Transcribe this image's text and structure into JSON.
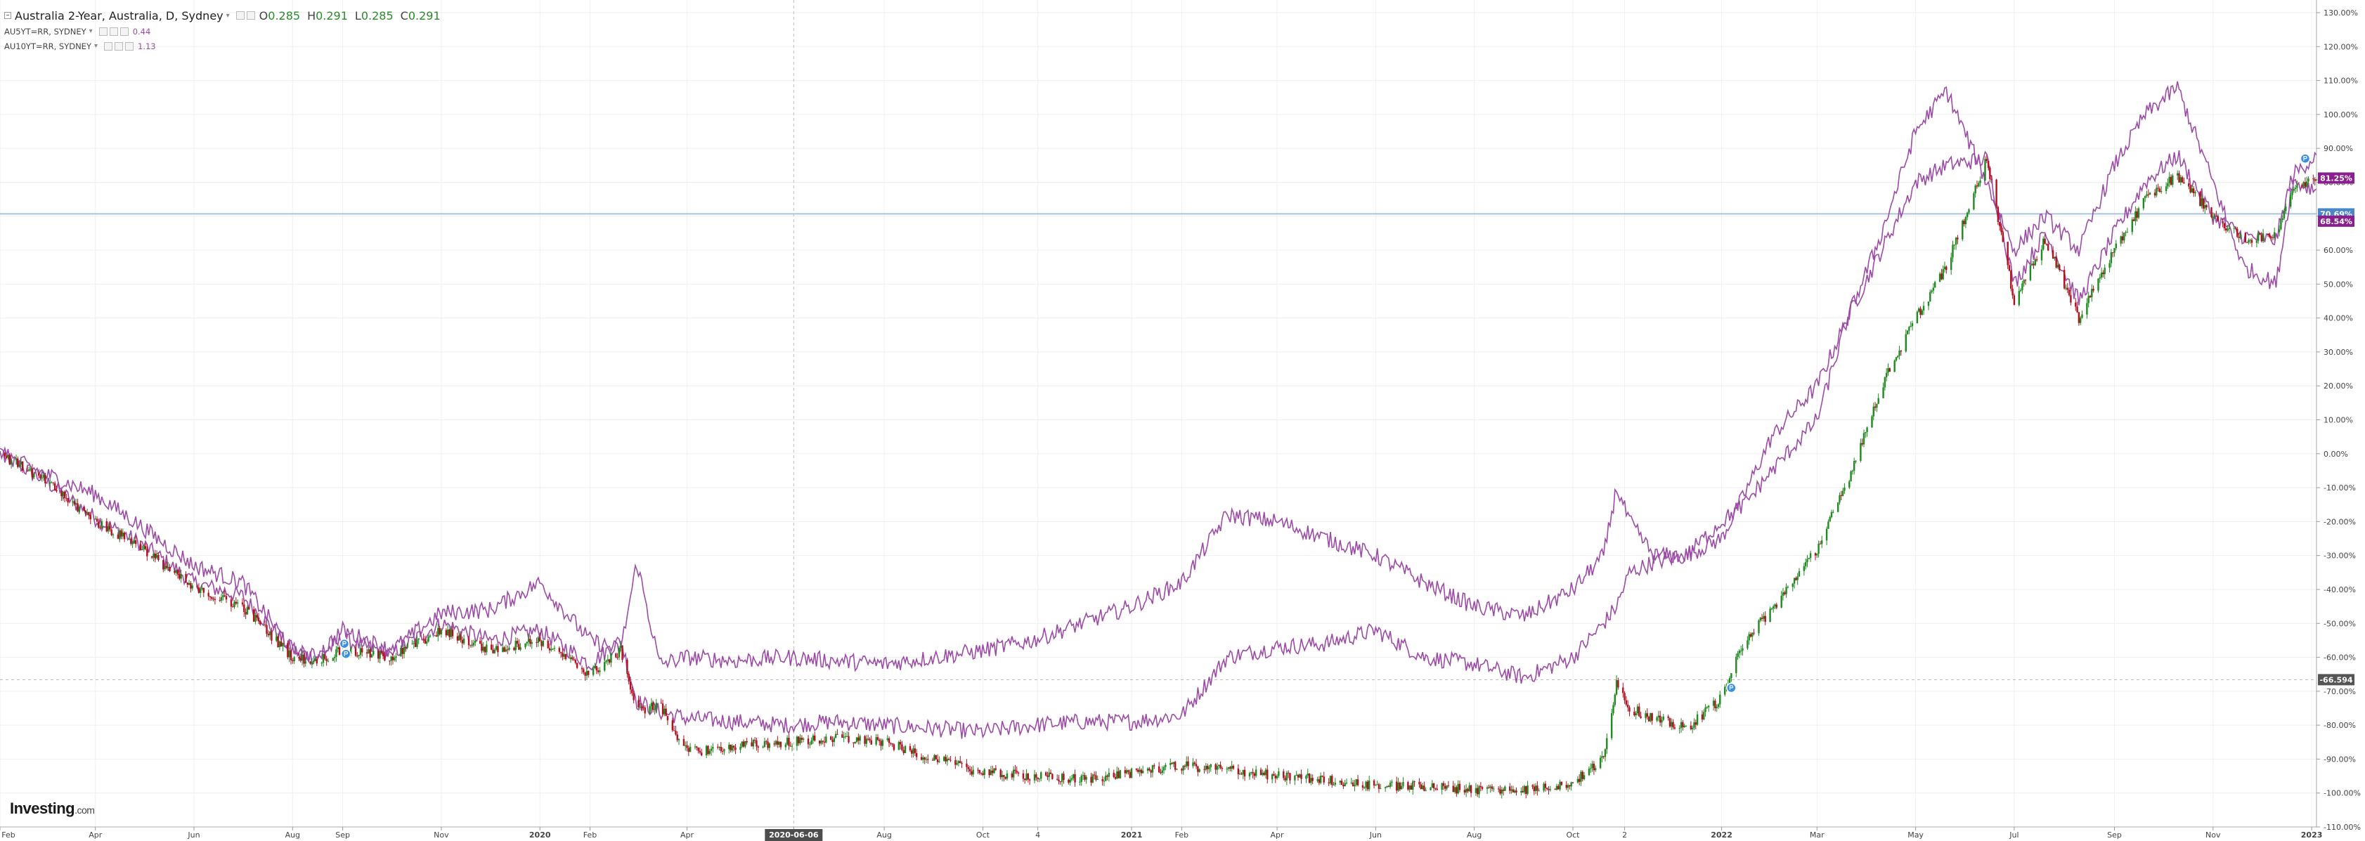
{
  "legend": {
    "main_title": "Australia 2-Year, Australia, D, Sydney",
    "ohlc": [
      {
        "label": "O",
        "value": "0.285"
      },
      {
        "label": "H",
        "value": "0.291"
      },
      {
        "label": "L",
        "value": "0.285"
      },
      {
        "label": "C",
        "value": "0.291"
      }
    ],
    "series": [
      {
        "label": "AU5YT=RR, SYDNEY",
        "value": "0.44"
      },
      {
        "label": "AU10YT=RR, SYDNEY",
        "value": "1.13"
      }
    ]
  },
  "logo": {
    "main": "Investing",
    "suffix": ".com"
  },
  "colors": {
    "up": "#1f8a1f",
    "down": "#b01020",
    "compare": "#9c4ba6",
    "hline": "#aac4dc"
  },
  "chart_data": {
    "type": "line",
    "title": "Australia 2-Year, Australia, D, Sydney",
    "y_scale": "percent change",
    "ylim": [
      -110,
      130
    ],
    "y_ticks": [
      "130.00%",
      "120.00%",
      "110.00%",
      "100.00%",
      "90.00%",
      "80.00%",
      "70.00%",
      "60.00%",
      "50.00%",
      "40.00%",
      "30.00%",
      "20.00%",
      "10.00%",
      "0.00%",
      "-10.00%",
      "-20.00%",
      "-30.00%",
      "-40.00%",
      "-50.00%",
      "-60.00%",
      "-70.00%",
      "-80.00%",
      "-90.00%",
      "-100.00%",
      "-110.00%"
    ],
    "x_ticks": [
      "Feb",
      "Apr",
      "Jun",
      "Aug",
      "Sep",
      "Nov",
      "2020",
      "Feb",
      "Apr",
      "2020-06-06",
      "Aug",
      "Oct",
      "4",
      "2021",
      "Feb",
      "Apr",
      "Jun",
      "Aug",
      "Oct",
      "2",
      "2022",
      "Mar",
      "May",
      "Jul",
      "Sep",
      "Nov",
      "2023"
    ],
    "x_range": [
      "2019-02-01",
      "2023-01-04"
    ],
    "grid": true,
    "legend_position": "top-left",
    "crosshair_x_label": "2020-06-06",
    "crosshair_y_label": "-66.594",
    "price_labels": [
      {
        "text": "81.25%",
        "value": 81.25,
        "color": "#8b1f8f"
      },
      {
        "text": "70.69%",
        "value": 70.69,
        "color": "#4a86c8"
      },
      {
        "text": "68.54%",
        "value": 68.54,
        "color": "#8b1f8f"
      },
      {
        "text": "-66.594",
        "value": -66.594,
        "color": "#555555"
      }
    ],
    "horizontal_line_value": 70.69,
    "event_markers": [
      {
        "date": "2019-09-02",
        "value": -56
      },
      {
        "date": "2019-09-03",
        "value": -59
      },
      {
        "date": "2022-01-07",
        "value": -69
      },
      {
        "date": "2022-12-28",
        "value": 87
      }
    ],
    "series": [
      {
        "name": "Australia 2-Year",
        "style": "candles",
        "dates": [
          "2019-02-01",
          "2019-03-01",
          "2019-04-01",
          "2019-05-01",
          "2019-06-01",
          "2019-07-01",
          "2019-08-01",
          "2019-08-15",
          "2019-09-01",
          "2019-10-01",
          "2019-11-01",
          "2019-12-01",
          "2020-01-01",
          "2020-02-01",
          "2020-02-20",
          "2020-03-01",
          "2020-03-15",
          "2020-04-01",
          "2020-05-01",
          "2020-06-01",
          "2020-07-01",
          "2020-08-01",
          "2020-09-01",
          "2020-10-01",
          "2020-11-01",
          "2020-12-01",
          "2021-01-01",
          "2021-02-01",
          "2021-03-01",
          "2021-04-01",
          "2021-05-01",
          "2021-06-01",
          "2021-07-01",
          "2021-08-01",
          "2021-09-01",
          "2021-10-01",
          "2021-10-20",
          "2021-10-28",
          "2021-11-05",
          "2021-11-20",
          "2021-12-10",
          "2022-01-01",
          "2022-01-15",
          "2022-02-01",
          "2022-03-01",
          "2022-03-20",
          "2022-04-10",
          "2022-05-01",
          "2022-05-20",
          "2022-06-14",
          "2022-07-01",
          "2022-07-20",
          "2022-08-10",
          "2022-09-01",
          "2022-09-20",
          "2022-10-10",
          "2022-11-01",
          "2022-11-20",
          "2022-12-10",
          "2022-12-20",
          "2023-01-04"
        ],
        "values": [
          0,
          -8,
          -20,
          -28,
          -40,
          -45,
          -60,
          -61,
          -58,
          -60,
          -52,
          -58,
          -55,
          -65,
          -58,
          -76,
          -74,
          -88,
          -86,
          -85,
          -84,
          -85,
          -90,
          -94,
          -95,
          -96,
          -94,
          -92,
          -93,
          -95,
          -96,
          -98,
          -98,
          -99,
          -99,
          -97,
          -90,
          -67,
          -75,
          -78,
          -81,
          -72,
          -55,
          -46,
          -28,
          -8,
          20,
          40,
          55,
          87,
          45,
          63,
          40,
          60,
          75,
          82,
          70,
          63,
          65,
          78,
          81
        ]
      },
      {
        "name": "AU5YT=RR",
        "style": "line",
        "dates": [
          "2019-02-01",
          "2019-03-01",
          "2019-04-01",
          "2019-05-01",
          "2019-06-01",
          "2019-07-01",
          "2019-08-01",
          "2019-08-15",
          "2019-09-01",
          "2019-10-01",
          "2019-11-01",
          "2019-12-01",
          "2020-01-01",
          "2020-02-01",
          "2020-02-20",
          "2020-03-01",
          "2020-03-15",
          "2020-04-01",
          "2020-05-01",
          "2020-06-01",
          "2020-07-01",
          "2020-08-01",
          "2020-09-01",
          "2020-10-01",
          "2020-11-01",
          "2020-12-01",
          "2021-01-01",
          "2021-02-01",
          "2021-03-01",
          "2021-04-01",
          "2021-05-01",
          "2021-06-01",
          "2021-07-01",
          "2021-08-01",
          "2021-09-01",
          "2021-10-01",
          "2021-10-20",
          "2021-10-28",
          "2021-11-05",
          "2021-11-20",
          "2021-12-10",
          "2022-01-01",
          "2022-01-15",
          "2022-02-01",
          "2022-03-01",
          "2022-03-20",
          "2022-04-10",
          "2022-05-01",
          "2022-05-20",
          "2022-06-14",
          "2022-07-01",
          "2022-07-20",
          "2022-08-10",
          "2022-09-01",
          "2022-09-20",
          "2022-10-10",
          "2022-11-01",
          "2022-11-20",
          "2022-12-10",
          "2022-12-20",
          "2023-01-04"
        ],
        "values": [
          0,
          -8,
          -19,
          -27,
          -38,
          -42,
          -58,
          -60,
          -55,
          -59,
          -50,
          -55,
          -52,
          -62,
          -55,
          -73,
          -76,
          -78,
          -79,
          -80,
          -79,
          -80,
          -81,
          -82,
          -80,
          -79,
          -79,
          -77,
          -60,
          -57,
          -56,
          -52,
          -60,
          -62,
          -66,
          -60,
          -50,
          -45,
          -35,
          -32,
          -30,
          -25,
          -12,
          5,
          20,
          40,
          60,
          80,
          85,
          87,
          50,
          65,
          45,
          65,
          80,
          88,
          70,
          64,
          63,
          82,
          88
        ]
      },
      {
        "name": "AU10YT=RR",
        "style": "line",
        "dates": [
          "2019-02-01",
          "2019-03-01",
          "2019-04-01",
          "2019-05-01",
          "2019-06-01",
          "2019-07-01",
          "2019-08-01",
          "2019-08-15",
          "2019-09-01",
          "2019-10-01",
          "2019-11-01",
          "2019-12-01",
          "2020-01-01",
          "2020-02-01",
          "2020-02-20",
          "2020-03-01",
          "2020-03-15",
          "2020-04-01",
          "2020-05-01",
          "2020-06-01",
          "2020-07-01",
          "2020-08-01",
          "2020-09-01",
          "2020-10-01",
          "2020-11-01",
          "2020-12-01",
          "2021-01-01",
          "2021-02-01",
          "2021-03-01",
          "2021-04-01",
          "2021-05-01",
          "2021-06-01",
          "2021-07-01",
          "2021-08-01",
          "2021-09-01",
          "2021-10-01",
          "2021-10-20",
          "2021-10-28",
          "2021-11-05",
          "2021-11-20",
          "2021-12-10",
          "2022-01-01",
          "2022-01-15",
          "2022-02-01",
          "2022-03-01",
          "2022-03-20",
          "2022-04-10",
          "2022-05-01",
          "2022-05-20",
          "2022-06-14",
          "2022-07-01",
          "2022-07-20",
          "2022-08-10",
          "2022-09-01",
          "2022-09-20",
          "2022-10-10",
          "2022-11-01",
          "2022-11-20",
          "2022-12-10",
          "2022-12-20",
          "2023-01-04"
        ],
        "values": [
          0,
          -6,
          -12,
          -22,
          -33,
          -38,
          -58,
          -60,
          -52,
          -58,
          -47,
          -46,
          -38,
          -55,
          -58,
          -32,
          -62,
          -60,
          -61,
          -60,
          -61,
          -62,
          -60,
          -58,
          -55,
          -50,
          -45,
          -38,
          -18,
          -20,
          -25,
          -30,
          -38,
          -45,
          -48,
          -40,
          -30,
          -10,
          -20,
          -30,
          -30,
          -20,
          -15,
          -5,
          10,
          40,
          65,
          95,
          107,
          80,
          60,
          70,
          60,
          85,
          100,
          108,
          80,
          55,
          50,
          80,
          78
        ]
      }
    ]
  }
}
